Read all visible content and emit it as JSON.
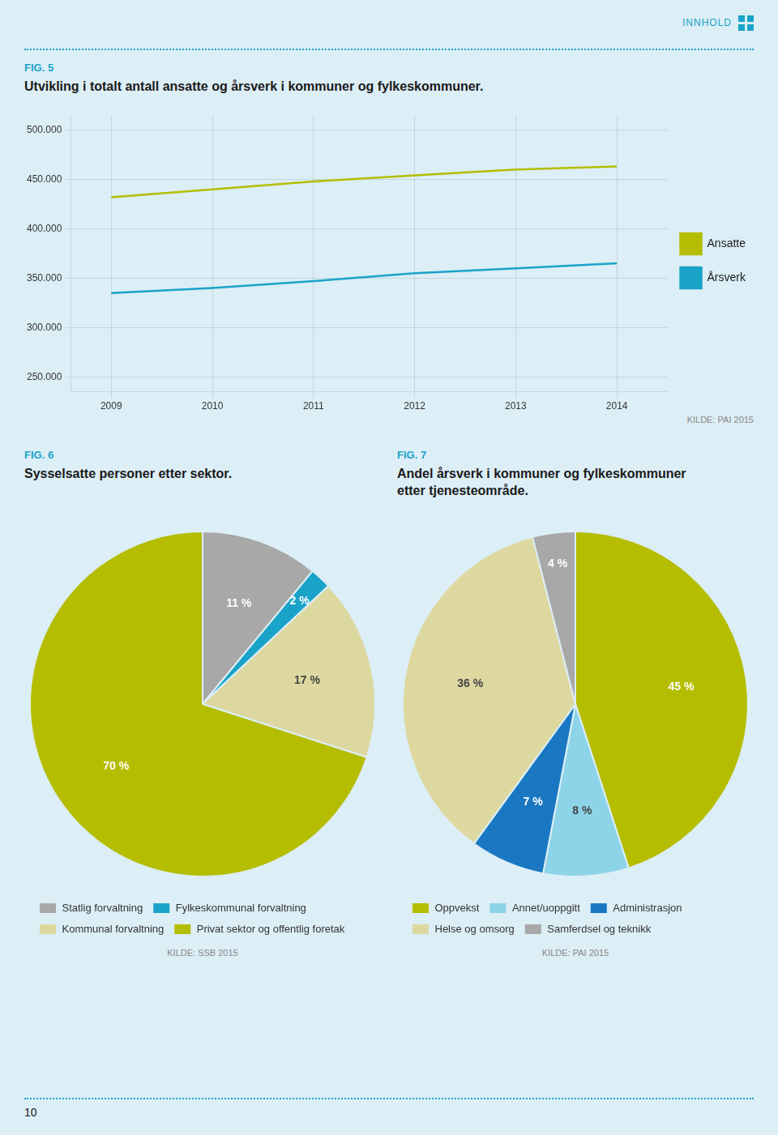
{
  "chart_data": [
    {
      "type": "line",
      "subtitle": "FIG. 5",
      "title": "Utvikling i totalt antall ansatte og årsverk i kommuner og fylkeskommuner.",
      "x": [
        2009,
        2010,
        2011,
        2012,
        2013,
        2014
      ],
      "xlim": [
        2008.6,
        2014.5
      ],
      "xticks": [
        2009,
        2010,
        2011,
        2012,
        2013,
        2014
      ],
      "ylim": [
        235000,
        515000
      ],
      "yticks": [
        {
          "value": 250000,
          "label": "250.000"
        },
        {
          "value": 300000,
          "label": "300.000"
        },
        {
          "value": 350000,
          "label": "350.000"
        },
        {
          "value": 400000,
          "label": "400.000"
        },
        {
          "value": 450000,
          "label": "450.000"
        },
        {
          "value": 500000,
          "label": "500.000"
        }
      ],
      "grid": true,
      "legend": "right",
      "series": [
        {
          "name": "Ansatte",
          "color": "#b5bd00",
          "values": [
            432000,
            440000,
            448000,
            454000,
            460000,
            463000
          ]
        },
        {
          "name": "Årsverk",
          "color": "#1aa3c8",
          "values": [
            335000,
            340000,
            347000,
            355000,
            360000,
            365000
          ]
        }
      ],
      "annotations": [
        "INNHOLD",
        "KILDE: PAI 2015"
      ]
    },
    {
      "type": "pie",
      "subtitle": "FIG. 6",
      "title": "Sysselsatte personer etter sektor.",
      "categories": [
        "Statlig forvaltning",
        "Fylkeskommunal forvaltning",
        "Kommunal forvaltning",
        "Privat sektor og offentlig foretak"
      ],
      "values": [
        11,
        2,
        17,
        70
      ],
      "value_labels": [
        "11 %",
        "2 %",
        "17 %",
        "70 %"
      ],
      "colors": [
        "#a8a8a8",
        "#1aa3c8",
        "#ddd8a0",
        "#b5bd00"
      ],
      "data_labels": true,
      "legend": "bottom",
      "annotations": [
        "KILDE: SSB 2015"
      ]
    },
    {
      "type": "pie",
      "subtitle": "FIG. 7",
      "title": "Andel årsverk i kommuner og fylkeskommuner\netter tjenesteområde.",
      "categories": [
        "Oppvekst",
        "Annet/uoppgitt",
        "Administrasjon",
        "Helse og omsorg",
        "Samferdsel og teknikk"
      ],
      "values": [
        45,
        8,
        7,
        36,
        4
      ],
      "value_labels": [
        "45 %",
        "8 %",
        "7 %",
        "36 %",
        "4 %"
      ],
      "colors": [
        "#b5bd00",
        "#8dd4e8",
        "#1a78c2",
        "#ddd8a0",
        "#a8a8a8"
      ],
      "data_labels": true,
      "legend": "bottom",
      "annotations": [
        "KILDE: PAI 2015",
        "10"
      ]
    }
  ]
}
